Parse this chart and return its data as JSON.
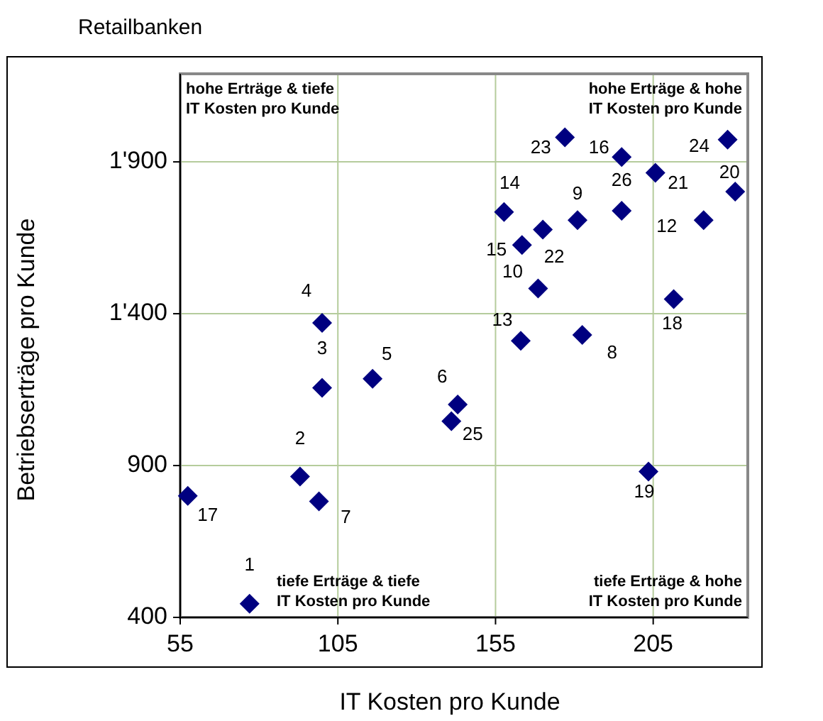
{
  "chart_data": {
    "type": "scatter",
    "title": "Retailbanken",
    "xlabel": "IT Kosten pro Kunde",
    "ylabel": "Betriebserträge pro Kunde",
    "xlim": [
      55,
      235
    ],
    "xticks": [
      55,
      105,
      155,
      205
    ],
    "ylim": [
      400,
      2190
    ],
    "yticks": [
      400,
      900,
      {
        "value": 1400,
        "label": "1'400"
      },
      {
        "value": 1900,
        "label": "1'900"
      }
    ],
    "grid": true,
    "marker": "diamond",
    "series": [
      {
        "color": "#000080",
        "x": [
          77,
          93,
          100,
          100,
          116,
          143,
          99,
          182.5,
          181,
          168.5,
          221,
          163,
          157.7,
          163.4,
          195,
          57.4,
          211.5,
          203.5,
          231,
          205.7,
          170,
          177,
          228.6,
          141,
          195
        ],
        "values": [
          445,
          864,
          1156,
          1370,
          1186,
          1101,
          782,
          1330,
          1708,
          1483,
          1708,
          1311,
          1735,
          1626,
          1916,
          800,
          1448,
          880,
          1802,
          1864,
          1677,
          1981,
          1973,
          1046,
          1739
        ]
      }
    ],
    "annotations": [
      "hohe Erträge & tiefe\nIT Kosten pro Kunde",
      "hohe Erträge & hohe\nIT Kosten pro Kunde",
      "tiefe Erträge & tiefe\nIT Kosten pro Kunde",
      "tiefe Erträge & hohe\nIT Kosten pro Kunde",
      {
        "text": "1",
        "x": 77,
        "y": 445
      },
      {
        "text": "2",
        "x": 93,
        "y": 864
      },
      {
        "text": "3",
        "x": 100,
        "y": 1156
      },
      {
        "text": "4",
        "x": 100,
        "y": 1370
      },
      {
        "text": "5",
        "x": 116,
        "y": 1186
      },
      {
        "text": "6",
        "x": 143,
        "y": 1101
      },
      {
        "text": "7",
        "x": 99,
        "y": 782
      },
      {
        "text": "8",
        "x": 182.5,
        "y": 1330
      },
      {
        "text": "9",
        "x": 181,
        "y": 1708
      },
      {
        "text": "10",
        "x": 168.5,
        "y": 1483
      },
      {
        "text": "12",
        "x": 221,
        "y": 1708
      },
      {
        "text": "13",
        "x": 163,
        "y": 1311
      },
      {
        "text": "14",
        "x": 157.7,
        "y": 1735
      },
      {
        "text": "15",
        "x": 163.4,
        "y": 1626
      },
      {
        "text": "16",
        "x": 195,
        "y": 1916
      },
      {
        "text": "17",
        "x": 57.4,
        "y": 800
      },
      {
        "text": "18",
        "x": 211.5,
        "y": 1448
      },
      {
        "text": "19",
        "x": 203.5,
        "y": 880
      },
      {
        "text": "20",
        "x": 231,
        "y": 1802
      },
      {
        "text": "21",
        "x": 205.7,
        "y": 1864
      },
      {
        "text": "22",
        "x": 170,
        "y": 1677
      },
      {
        "text": "23",
        "x": 177,
        "y": 1981
      },
      {
        "text": "24",
        "x": 228.6,
        "y": 1973
      },
      {
        "text": "25",
        "x": 141,
        "y": 1046
      },
      {
        "text": "26",
        "x": 195,
        "y": 1739
      }
    ]
  }
}
